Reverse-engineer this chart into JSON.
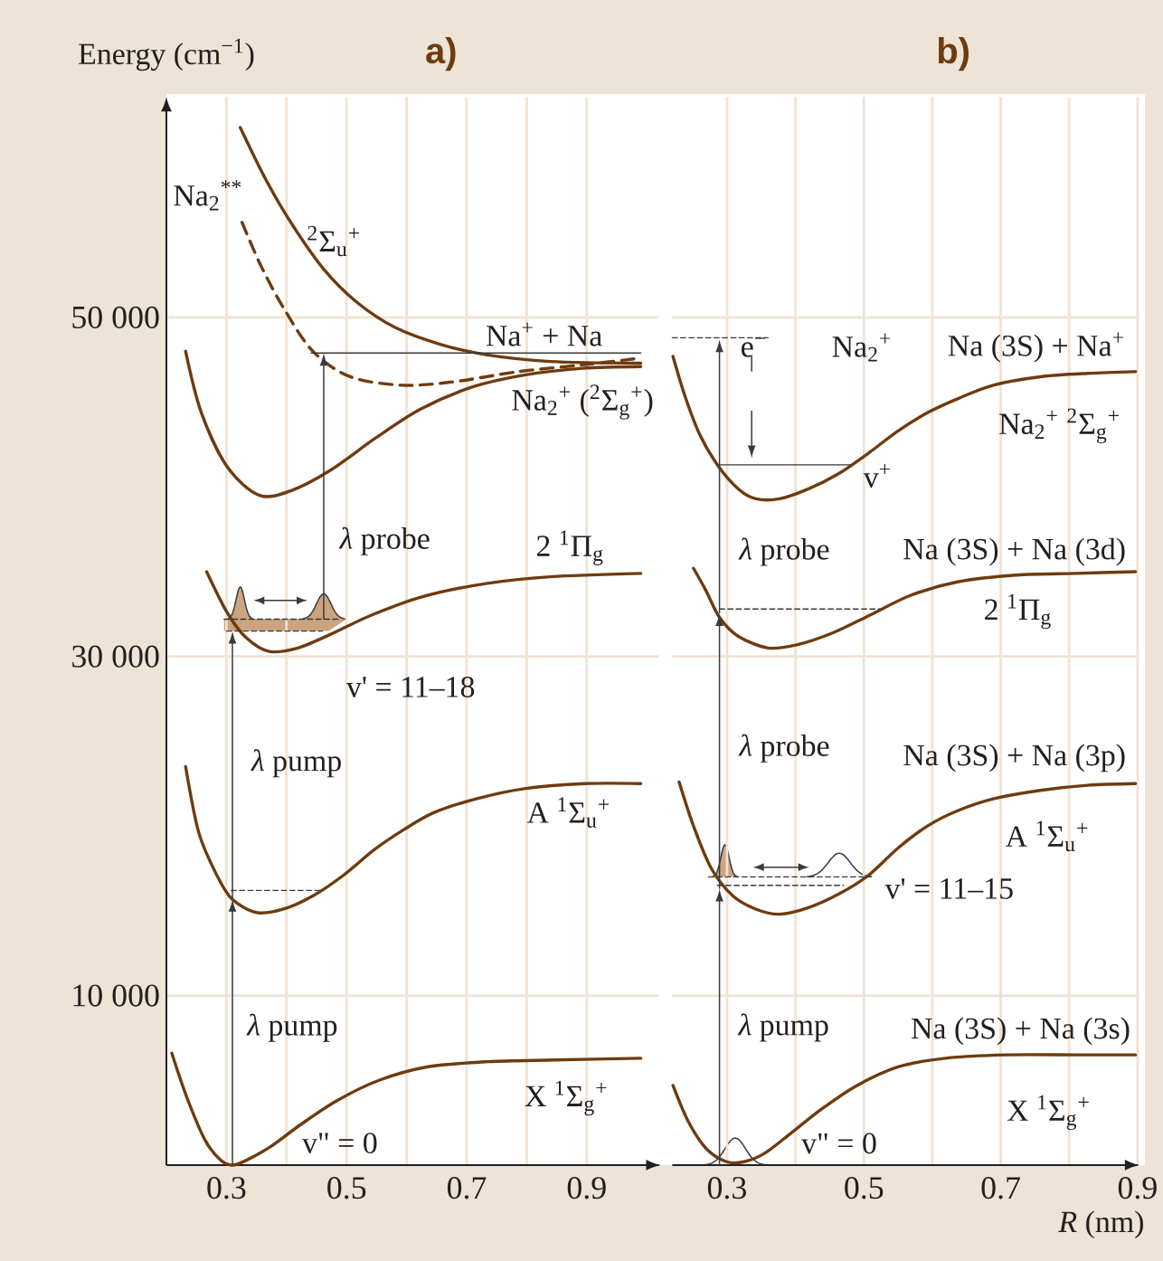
{
  "chart_data": [
    {
      "type": "line",
      "title": "a)",
      "ylabel": "Energy (cm$^{−1}$)",
      "xlim": [
        0.2,
        1.02
      ],
      "ylim": [
        0,
        63000
      ],
      "xticks": [
        0.3,
        {
          "value": 0.4,
          "label": null
        },
        0.5,
        {
          "value": 0.6,
          "label": null
        },
        0.7,
        {
          "value": 0.8,
          "label": null
        },
        0.9
      ],
      "yticks": [
        {
          "value": 10000,
          "label": "10 000"
        },
        {
          "value": 30000,
          "label": "30 000"
        },
        {
          "value": 50000,
          "label": "50 000"
        }
      ],
      "grid": true,
      "series": [
        {
          "name": "$^{2}$Σ$_{u}$$^{+}$",
          "color": "#6e3b0f",
          "x": [
            0.323,
            0.366,
            0.409,
            0.463,
            0.517,
            0.581,
            0.657,
            0.732,
            0.839,
            0.99
          ],
          "values": [
            61200,
            58100,
            55500,
            52800,
            50900,
            49400,
            48400,
            47800,
            47400,
            47300
          ]
        },
        {
          "name": "Na$_{2}$$^{**}$",
          "color": "#6e3b0f",
          "line_style": "dashed",
          "x": [
            0.326,
            0.358,
            0.396,
            0.444,
            0.506,
            0.592,
            0.678,
            0.786,
            0.893,
            0.99
          ],
          "values": [
            55600,
            53000,
            50500,
            48000,
            46500,
            46000,
            46200,
            46800,
            47200,
            47600
          ]
        },
        {
          "name": "Na$_{2}$$^{+}$ ($^{2}$Σ$_{g}$$^{+}$)",
          "color": "#6e3b0f",
          "x": [
            0.232,
            0.258,
            0.301,
            0.355,
            0.409,
            0.474,
            0.549,
            0.624,
            0.71,
            0.796,
            0.893,
            0.99
          ],
          "values": [
            48000,
            44400,
            41200,
            39500,
            39800,
            41000,
            42900,
            44600,
            45900,
            46600,
            47000,
            47100
          ]
        },
        {
          "name": "2 $^{1}$Π$_{g}$",
          "color": "#6e3b0f",
          "x": [
            0.267,
            0.301,
            0.333,
            0.371,
            0.419,
            0.473,
            0.539,
            0.624,
            0.732,
            0.839,
            0.99
          ],
          "values": [
            35000,
            32600,
            31100,
            30300,
            30500,
            31300,
            32400,
            33500,
            34300,
            34700,
            34900
          ]
        },
        {
          "name": "A $^{1}$Σ$_{u}$$^{+}$",
          "color": "#6e3b0f",
          "x": [
            0.232,
            0.254,
            0.284,
            0.309,
            0.35,
            0.395,
            0.445,
            0.495,
            0.546,
            0.596,
            0.646,
            0.716,
            0.796,
            0.897,
            0.99
          ],
          "values": [
            23500,
            19600,
            17100,
            15700,
            14900,
            15100,
            15900,
            17100,
            18600,
            19800,
            20800,
            21600,
            22200,
            22500,
            22500
          ]
        },
        {
          "name": "X $^{1}$Σ$_{g}$$^{+}$",
          "color": "#6e3b0f",
          "x": [
            0.209,
            0.234,
            0.264,
            0.29,
            0.31,
            0.334,
            0.374,
            0.424,
            0.484,
            0.554,
            0.636,
            0.736,
            0.846,
            0.99
          ],
          "values": [
            6600,
            4000,
            1500,
            300,
            0,
            300,
            1100,
            2400,
            3800,
            5000,
            5800,
            6100,
            6200,
            6300
          ]
        },
        {
          "color": "#3a3a3a",
          "line_style": "dashed",
          "x": [
            0.308,
            0.459
          ],
          "values": [
            16200,
            16200
          ]
        },
        {
          "color": "#3a3a3a",
          "line_style": "dashed",
          "x": [
            0.296,
            0.49
          ],
          "values": [
            32200,
            32200
          ]
        },
        {
          "color": "#3a3a3a",
          "line_style": "dashed",
          "x": [
            0.3,
            0.46
          ],
          "values": [
            31500,
            31500
          ]
        },
        {
          "color": "#3a3a3a",
          "x": [
            0.441,
            0.99
          ],
          "values": [
            47900,
            47900
          ]
        }
      ],
      "annotations": [
        "Na$^{+}$ + Na",
        "*λ* probe",
        "v' = 11–18",
        "*λ* pump",
        "*λ* pump",
        "v\" = 0"
      ]
    },
    {
      "type": "line",
      "title": "b)",
      "xlabel": "*R* (nm)",
      "xlim": [
        0.22,
        0.9
      ],
      "ylim": [
        0,
        63000
      ],
      "xticks": [
        0.3,
        {
          "value": 0.4,
          "label": null
        },
        0.5,
        {
          "value": 0.6,
          "label": null
        },
        0.7,
        {
          "value": 0.8,
          "label": null
        },
        0.9
      ],
      "yticks": [
        10000,
        30000,
        50000
      ],
      "grid": true,
      "tick_labels": "x",
      "series": [
        {
          "name": "Na$_{2}$$^{+}$ $^{2}$Σ$_{g}$$^{+}$",
          "color": "#6e3b0f",
          "x": [
            0.221,
            0.239,
            0.26,
            0.286,
            0.316,
            0.342,
            0.377,
            0.42,
            0.464,
            0.507,
            0.55,
            0.594,
            0.637,
            0.689,
            0.758,
            0.827,
            0.897
          ],
          "values": [
            47700,
            45300,
            43100,
            41300,
            39900,
            39300,
            39300,
            39900,
            40800,
            42000,
            43300,
            44400,
            45200,
            46000,
            46500,
            46700,
            46800
          ]
        },
        {
          "name": "2 $^{1}$Π$_{g}$",
          "color": "#6e3b0f",
          "x": [
            0.251,
            0.269,
            0.289,
            0.316,
            0.36,
            0.403,
            0.455,
            0.507,
            0.568,
            0.637,
            0.723,
            0.81,
            0.897
          ],
          "values": [
            35200,
            33900,
            32300,
            31200,
            30500,
            30700,
            31400,
            32400,
            33600,
            34400,
            34800,
            34900,
            35000
          ]
        },
        {
          "name": "A $^{1}$Σ$_{u}$$^{+}$",
          "color": "#6e3b0f",
          "x": [
            0.23,
            0.251,
            0.277,
            0.308,
            0.342,
            0.377,
            0.42,
            0.464,
            0.507,
            0.55,
            0.593,
            0.637,
            0.689,
            0.758,
            0.827,
            0.897
          ],
          "values": [
            22600,
            20000,
            17500,
            15900,
            15100,
            14800,
            15200,
            16000,
            17100,
            18700,
            20000,
            20900,
            21600,
            22100,
            22400,
            22500
          ]
        },
        {
          "name": "X $^{1}$Σ$_{g}$$^{+}$",
          "color": "#6e3b0f",
          "x": [
            0.221,
            0.243,
            0.269,
            0.299,
            0.325,
            0.355,
            0.394,
            0.438,
            0.49,
            0.55,
            0.619,
            0.706,
            0.81,
            0.897
          ],
          "values": [
            4700,
            2600,
            1000,
            200,
            200,
            700,
            1900,
            3300,
            4700,
            5800,
            6300,
            6500,
            6500,
            6500
          ]
        },
        {
          "color": "#3a3a3a",
          "line_style": "dashed",
          "x": [
            0.22,
            0.36
          ],
          "values": [
            48800,
            48800
          ]
        },
        {
          "color": "#3a3a3a",
          "x": [
            0.286,
            0.481
          ],
          "values": [
            41300,
            41300
          ]
        },
        {
          "color": "#3a3a3a",
          "line_style": "dashed",
          "x": [
            0.289,
            0.523
          ],
          "values": [
            32800,
            32800
          ]
        },
        {
          "color": "#3a3a3a",
          "line_style": "dashed",
          "x": [
            0.273,
            0.51
          ],
          "values": [
            17000,
            17000
          ]
        },
        {
          "color": "#3a3a3a",
          "line_style": "dashed",
          "x": [
            0.286,
            0.47
          ],
          "values": [
            16500,
            16500
          ]
        }
      ],
      "annotations": [
        "e$^{−}$",
        "Na$_{2}$$^{+}$",
        "Na (3S) + Na$^{+}$",
        "v$^{+}$",
        "*λ* probe",
        "Na (3S) + Na (3d)",
        "*λ* probe",
        "Na (3S) + Na (3p)",
        "v' = 11–15",
        "*λ* pump",
        "Na (3S) + Na (3s)",
        "v\" = 0"
      ]
    }
  ]
}
